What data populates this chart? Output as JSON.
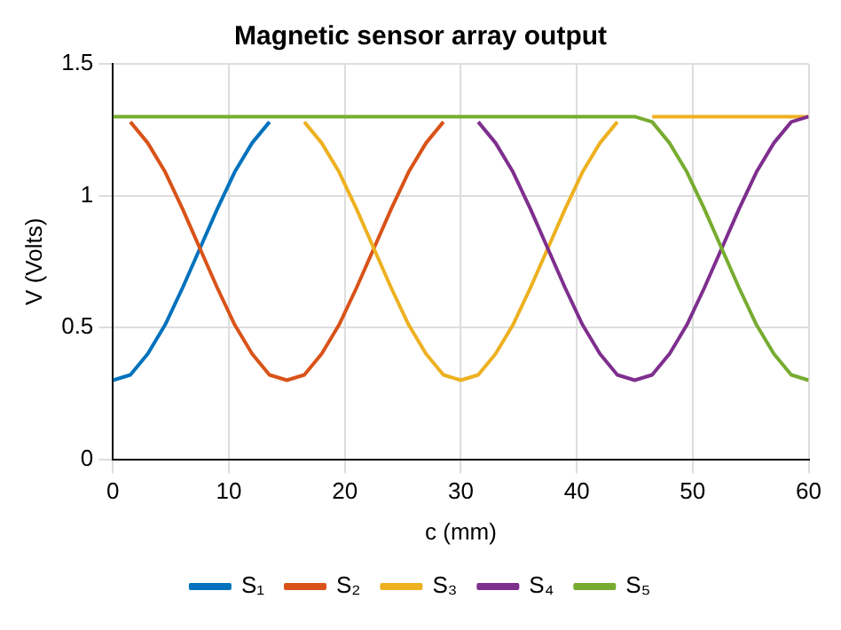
{
  "chart_data": {
    "type": "line",
    "title": "Magnetic sensor array output",
    "xlabel": "c (mm)",
    "ylabel": "V (Volts)",
    "x": [
      0,
      1.5,
      3,
      4.5,
      6,
      7.5,
      9,
      10.5,
      12,
      13.5,
      15,
      16.5,
      18,
      19.5,
      21,
      22.5,
      24,
      25.5,
      27,
      28.5,
      30,
      31.5,
      33,
      34.5,
      36,
      37.5,
      39,
      40.5,
      42,
      43.5,
      45,
      46.5,
      48,
      49.5,
      51,
      52.5,
      54,
      55.5,
      57,
      58.5,
      60
    ],
    "series": [
      {
        "name": "S₁",
        "color": "#0072bd",
        "values": [
          0.3,
          0.32,
          0.4,
          0.51,
          0.65,
          0.8,
          0.95,
          1.09,
          1.2,
          1.28,
          null,
          null,
          null,
          null,
          null,
          null,
          null,
          null,
          null,
          null,
          null,
          null,
          null,
          null,
          null,
          null,
          null,
          null,
          null,
          null,
          null,
          null,
          null,
          null,
          null,
          null,
          null,
          null,
          null,
          null,
          null
        ]
      },
      {
        "name": "S₂",
        "color": "#d95319",
        "values": [
          null,
          1.28,
          1.2,
          1.09,
          0.95,
          0.8,
          0.65,
          0.51,
          0.4,
          0.32,
          0.3,
          0.32,
          0.4,
          0.51,
          0.65,
          0.8,
          0.95,
          1.09,
          1.2,
          1.28,
          null,
          null,
          null,
          null,
          null,
          null,
          null,
          null,
          null,
          null,
          null,
          null,
          null,
          null,
          null,
          null,
          null,
          null,
          null,
          null,
          null
        ]
      },
      {
        "name": "S₃",
        "color": "#edb120",
        "values": [
          null,
          null,
          null,
          null,
          null,
          null,
          null,
          null,
          null,
          null,
          null,
          1.28,
          1.2,
          1.09,
          0.95,
          0.8,
          0.65,
          0.51,
          0.4,
          0.32,
          0.3,
          0.32,
          0.4,
          0.51,
          0.65,
          0.8,
          0.95,
          1.09,
          1.2,
          1.28,
          null,
          1.3,
          1.3,
          1.3,
          1.3,
          1.3,
          1.3,
          1.3,
          1.3,
          1.3,
          1.3
        ]
      },
      {
        "name": "S₄",
        "color": "#7e2f8e",
        "values": [
          null,
          null,
          null,
          null,
          null,
          null,
          null,
          null,
          null,
          null,
          null,
          null,
          null,
          null,
          null,
          null,
          null,
          null,
          null,
          null,
          null,
          1.28,
          1.2,
          1.09,
          0.95,
          0.8,
          0.65,
          0.51,
          0.4,
          0.32,
          0.3,
          0.32,
          0.4,
          0.51,
          0.65,
          0.8,
          0.95,
          1.09,
          1.2,
          1.28,
          1.3
        ]
      },
      {
        "name": "S₅",
        "color": "#77ac30",
        "values": [
          1.3,
          1.3,
          1.3,
          1.3,
          1.3,
          1.3,
          1.3,
          1.3,
          1.3,
          1.3,
          1.3,
          1.3,
          1.3,
          1.3,
          1.3,
          1.3,
          1.3,
          1.3,
          1.3,
          1.3,
          1.3,
          1.3,
          1.3,
          1.3,
          1.3,
          1.3,
          1.3,
          1.3,
          1.3,
          1.3,
          1.3,
          1.28,
          1.2,
          1.09,
          0.95,
          0.8,
          0.65,
          0.51,
          0.4,
          0.32,
          0.3
        ]
      }
    ],
    "xlim": [
      0,
      60
    ],
    "xticks": [
      0,
      10,
      20,
      30,
      40,
      50,
      60
    ],
    "ylim": [
      0,
      1.5
    ],
    "yticks": [
      0,
      0.5,
      1,
      1.5
    ],
    "grid": true,
    "legend": "bottom",
    "marker": "none",
    "line_style": "solid"
  }
}
